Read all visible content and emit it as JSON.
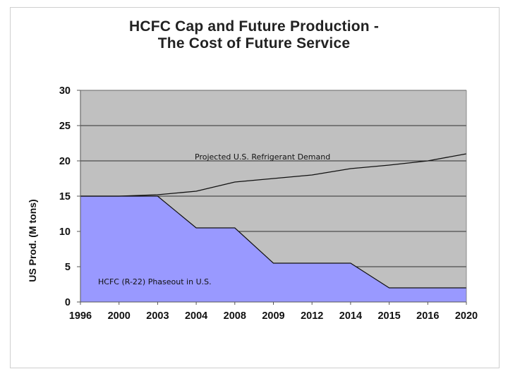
{
  "chart_data": {
    "type": "area",
    "title": "HCFC Cap and Future Production -",
    "subtitle": "The Cost of Future Service",
    "xlabel": "",
    "ylabel": "US Prod. (M tons)",
    "categories": [
      "1996",
      "2000",
      "2003",
      "2004",
      "2008",
      "2009",
      "2012",
      "2014",
      "2015",
      "2016",
      "2020"
    ],
    "ylim": [
      0,
      30
    ],
    "yticks": [
      0,
      5,
      10,
      15,
      20,
      25,
      30
    ],
    "grid": true,
    "series": [
      {
        "name": "Projected U.S. Refrigerant Demand",
        "kind": "line",
        "values": [
          15,
          15,
          15.2,
          15.7,
          17,
          17.5,
          18,
          18.9,
          19.4,
          20,
          21
        ],
        "color": "#111111"
      },
      {
        "name": "HCFC (R-22) Phaseout in U.S.",
        "kind": "area",
        "values": [
          15,
          15,
          15,
          10.5,
          10.5,
          5.5,
          5.5,
          5.5,
          2,
          2,
          2
        ],
        "color": "#9999ff"
      }
    ],
    "annotations": [
      {
        "text": "Projected U.S. Refrigerant Demand"
      },
      {
        "text": "HCFC (R-22) Phaseout in U.S."
      }
    ],
    "colors": {
      "plot_background": "#c0c0c0",
      "grid": "#000000",
      "area_fill": "#9999ff"
    }
  }
}
